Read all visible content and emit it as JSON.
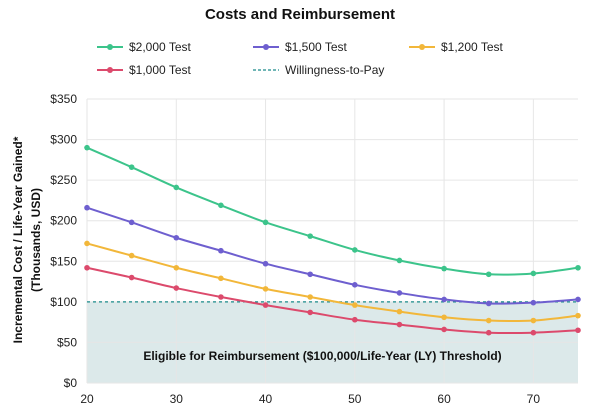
{
  "chart_data": {
    "type": "line",
    "title": "Costs and Reimbursement",
    "ylabel_line1": "Incremental Cost / Life-Year Gained*",
    "ylabel_line2": "(Thousands, USD)",
    "xlabel": "",
    "x": [
      20,
      25,
      30,
      35,
      40,
      45,
      50,
      55,
      60,
      65,
      70,
      75
    ],
    "xlim": [
      20,
      75
    ],
    "ylim": [
      0,
      350
    ],
    "x_ticks": [
      "20",
      "30",
      "40",
      "50",
      "60",
      "70"
    ],
    "y_ticks": [
      "$0",
      "$50",
      "$100",
      "$150",
      "$200",
      "$250",
      "$300",
      "$350"
    ],
    "grid": true,
    "legend_placement": "top",
    "series": [
      {
        "name": "$2,000 Test",
        "color": "#3cc48b",
        "values": [
          290,
          266,
          241,
          219,
          198,
          181,
          164,
          151,
          141,
          134,
          135,
          142
        ]
      },
      {
        "name": "$1,500 Test",
        "color": "#6e5fcf",
        "values": [
          216,
          198,
          179,
          163,
          147,
          134,
          121,
          111,
          103,
          98,
          99,
          103
        ]
      },
      {
        "name": "$1,200 Test",
        "color": "#f2b73a",
        "values": [
          172,
          157,
          142,
          129,
          116,
          106,
          96,
          88,
          81,
          77,
          77,
          83
        ]
      },
      {
        "name": "$1,000 Test",
        "color": "#dc4a6c",
        "values": [
          142,
          130,
          117,
          106,
          96,
          87,
          78,
          72,
          66,
          62,
          62,
          65
        ]
      }
    ],
    "threshold": {
      "name": "Willingness-to-Pay",
      "value": 100,
      "color": "#1a8a8a",
      "region_color": "#dce9ea",
      "region_label": "Eligible for Reimbursement ($100,000/Life-Year (LY) Threshold)"
    }
  }
}
